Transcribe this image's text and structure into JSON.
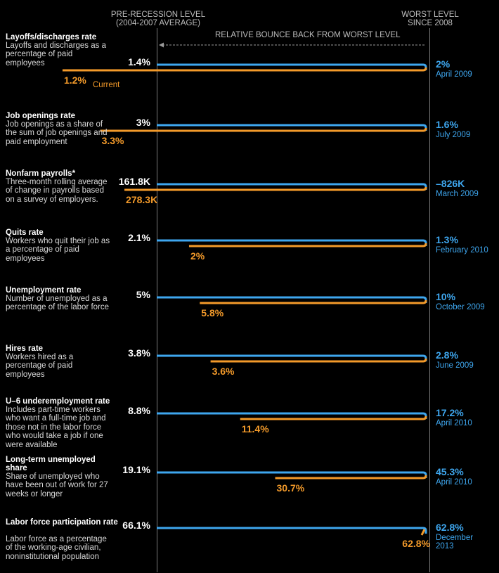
{
  "header": {
    "pre_recession_line1": "PRE-RECESSION LEVEL",
    "pre_recession_line2": "(2004-2007 AVERAGE)",
    "worst_line1": "WORST LEVEL",
    "worst_line2": "SINCE 2008",
    "bounce_back": "RELATIVE BOUNCE BACK FROM WORST LEVEL",
    "current_tag": "Current"
  },
  "colors": {
    "pre_recession_bar": "#3ea6ee",
    "current_bar": "#f39a2a",
    "worst_text": "#3ea6ee",
    "background": "#000000"
  },
  "chart_data": {
    "type": "bar",
    "title": "",
    "xlabel": "",
    "ylabel": "",
    "xlim": [
      0,
      1
    ],
    "legend": "header-top",
    "grid": false,
    "series_names": [
      "PRE-RECESSION LEVEL (2004-2007 AVERAGE)",
      "Current",
      "WORST LEVEL SINCE 2008"
    ],
    "indicators": [
      {
        "title": "Layoffs/discharges rate",
        "description": "Layoffs and discharges as a percentage of paid employees",
        "pre_recession": "1.4%",
        "current": "1.2%",
        "worst": "2%",
        "worst_date": "April 2009",
        "bounce_back": 1.35
      },
      {
        "title": "Job openings rate",
        "description": "Job openings as a share of the sum of job openings and paid employment",
        "pre_recession": "3%",
        "current": "3.3%",
        "worst": "1.6%",
        "worst_date": "July 2009",
        "bounce_back": 1.21
      },
      {
        "title": "Nonfarm payrolls*",
        "description": "Three-month rolling average of change in payrolls based on a survey of employers.",
        "pre_recession": "161.8K",
        "current": "278.3K",
        "worst": "–826K",
        "worst_date": "March 2009",
        "bounce_back": 1.12
      },
      {
        "title": "Quits rate",
        "description": "Workers who quit their job as a percentage of paid employees",
        "pre_recession": "2.1%",
        "current": "2%",
        "worst": "1.3%",
        "worst_date": "February 2010",
        "bounce_back": 0.88
      },
      {
        "title": "Unemployment rate",
        "description": "Number of unemployed as a percentage of the labor force",
        "pre_recession": "5%",
        "current": "5.8%",
        "worst": "10%",
        "worst_date": "October 2009",
        "bounce_back": 0.84
      },
      {
        "title": "Hires rate",
        "description": "Workers hired as a percentage of paid employees",
        "pre_recession": "3.8%",
        "current": "3.6%",
        "worst": "2.8%",
        "worst_date": "June 2009",
        "bounce_back": 0.8
      },
      {
        "title": "U–6 underemployment rate",
        "description": "Includes part-time workers who want a full-time job and those not in the labor force who would take a job if one were available",
        "pre_recession": "8.8%",
        "current": "11.4%",
        "worst": "17.2%",
        "worst_date": "April 2010",
        "bounce_back": 0.69
      },
      {
        "title": "Long-term unemployed share",
        "description": "Share of unemployed who have been out of work for 27 weeks or longer",
        "pre_recession": "19.1%",
        "current": "30.7%",
        "worst": "45.3%",
        "worst_date": "April 2010",
        "bounce_back": 0.56
      },
      {
        "title": "Labor force participation rate",
        "description": "Labor force as a percentage of the working-age civilian, noninstitutional population",
        "pre_recession": "66.1%",
        "current": "62.8%",
        "worst": "62.8%",
        "worst_date": "December 2013",
        "bounce_back": 0
      }
    ]
  }
}
